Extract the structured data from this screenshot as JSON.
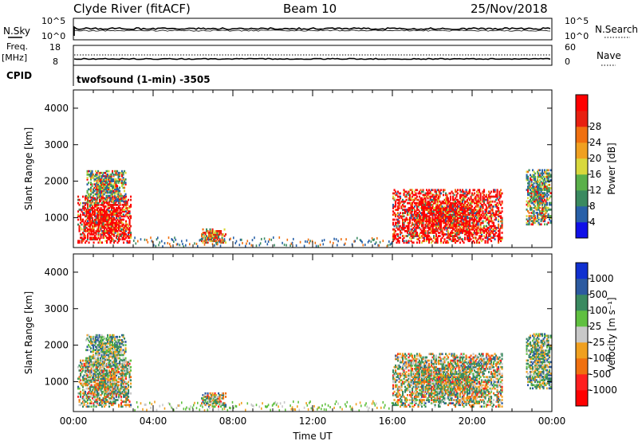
{
  "header": {
    "station": "Clyde River (fitACF)",
    "beam": "Beam 10",
    "date": "25/Nov/2018"
  },
  "status_panels": {
    "nsky_label": "N.Sky",
    "nsearch_label": "N.Search",
    "noise_ticks_left": [
      "10^5",
      "10^0"
    ],
    "noise_ticks_right": [
      "10^5",
      "10^0"
    ],
    "freq_label_top": "Freq.",
    "freq_label_unit": "[MHz]",
    "freq_ticks": [
      "18",
      "8"
    ],
    "nave_label": "Nave",
    "nave_ticks": [
      "60",
      "0"
    ],
    "cpid_label": "CPID",
    "cpid_text": "twofsound (1-min) -3505"
  },
  "chart_data": [
    {
      "type": "heatmap",
      "quantity": "power",
      "xlabel": "",
      "ylabel": "Slant Range [km]",
      "ylim": [
        180,
        4500
      ],
      "yticks": [
        1000,
        2000,
        3000,
        4000
      ],
      "xlim": [
        0,
        24
      ],
      "colorbar": {
        "label": "Power [dB]",
        "ticks": [
          "4",
          "8",
          "12",
          "16",
          "20",
          "24",
          "28"
        ],
        "colors": [
          "#1010e8",
          "#2860a8",
          "#3a8a60",
          "#5ab04a",
          "#d8d83c",
          "#f0a020",
          "#f07010",
          "#e82010",
          "#ff0000"
        ]
      },
      "echo_regions": [
        {
          "t0": 0.2,
          "t1": 2.9,
          "r0": 300,
          "r1": 1600,
          "level": "high"
        },
        {
          "t0": 0.6,
          "t1": 2.6,
          "r0": 1400,
          "r1": 2300,
          "level": "mixed"
        },
        {
          "t0": 6.4,
          "t1": 7.6,
          "r0": 300,
          "r1": 700,
          "level": "mid"
        },
        {
          "t0": 16.0,
          "t1": 21.5,
          "r0": 300,
          "r1": 1750,
          "level": "high"
        },
        {
          "t0": 22.7,
          "t1": 23.9,
          "r0": 800,
          "r1": 2300,
          "level": "mixed"
        }
      ]
    },
    {
      "type": "heatmap",
      "quantity": "velocity",
      "xlabel": "Time UT",
      "ylabel": "Slant Range [km]",
      "ylim": [
        180,
        4500
      ],
      "yticks": [
        1000,
        2000,
        3000,
        4000
      ],
      "xlim": [
        0,
        24
      ],
      "xticks": [
        "00:00",
        "04:00",
        "08:00",
        "12:00",
        "16:00",
        "20:00",
        "00:00"
      ],
      "colorbar": {
        "label": "Velocity [m s⁻¹]",
        "ticks": [
          "1000",
          "500",
          "100",
          "25",
          "-25",
          "-100",
          "-500",
          "-1000"
        ],
        "colors": [
          "#1030d0",
          "#2c5aa0",
          "#3a8a60",
          "#60c040",
          "#c8c8c8",
          "#f0a020",
          "#f07010",
          "#ff2020",
          "#ff0000"
        ]
      },
      "echo_regions": [
        {
          "t0": 0.2,
          "t1": 2.9,
          "r0": 300,
          "r1": 1600,
          "level": "mixed"
        },
        {
          "t0": 0.6,
          "t1": 2.6,
          "r0": 1400,
          "r1": 2300,
          "level": "positive"
        },
        {
          "t0": 6.4,
          "t1": 7.6,
          "r0": 300,
          "r1": 700,
          "level": "mixed"
        },
        {
          "t0": 16.0,
          "t1": 21.5,
          "r0": 300,
          "r1": 1750,
          "level": "mixed"
        },
        {
          "t0": 22.7,
          "t1": 23.9,
          "r0": 800,
          "r1": 2300,
          "level": "positive"
        }
      ]
    }
  ]
}
